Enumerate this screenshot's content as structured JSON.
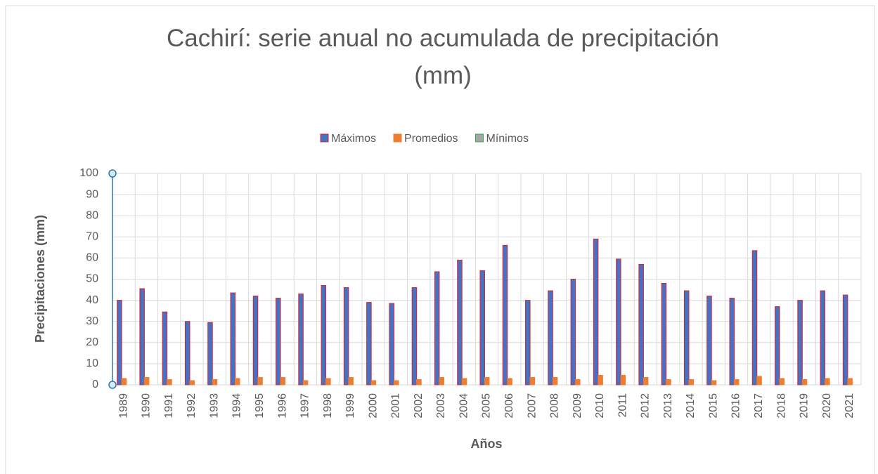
{
  "chart_data": {
    "type": "bar",
    "title": "Cachirí: serie anual no acumulada de precipitación (mm)",
    "x_label": "Años",
    "y_label": "Precipitaciones (mm)",
    "categories": [
      "1989",
      "1990",
      "1991",
      "1992",
      "1993",
      "1994",
      "1995",
      "1996",
      "1997",
      "1998",
      "1999",
      "2000",
      "2001",
      "2002",
      "2003",
      "2004",
      "2005",
      "2006",
      "2007",
      "2008",
      "2009",
      "2010",
      "2011",
      "2012",
      "2013",
      "2014",
      "2015",
      "2016",
      "2017",
      "2018",
      "2019",
      "2020",
      "2021"
    ],
    "series": [
      {
        "name": "Máximos",
        "color": "#4472c4",
        "stroke": "#e0202a",
        "values": [
          40,
          45.5,
          34.5,
          30,
          29.5,
          43.5,
          42,
          41,
          43,
          47,
          46,
          39,
          38.5,
          46,
          53.5,
          59,
          54,
          66,
          40,
          44.5,
          50,
          69,
          59.5,
          57,
          48,
          44.5,
          42,
          41,
          63.5,
          37,
          40,
          44.5,
          42.5
        ]
      },
      {
        "name": "Promedios",
        "color": "#ed7d31",
        "stroke": "#ed7d31",
        "values": [
          3,
          3.5,
          2.5,
          2,
          2.5,
          3,
          3.5,
          3.5,
          2,
          3,
          3.5,
          2,
          2,
          2.5,
          3.5,
          3,
          3.5,
          3,
          3.5,
          3.5,
          2.5,
          4.5,
          4.5,
          3.5,
          2.5,
          2.5,
          2,
          2.5,
          4,
          3,
          2.5,
          3,
          3
        ]
      },
      {
        "name": "Mínimos",
        "color": "#a5a5a5",
        "stroke": "#3aa655",
        "values": [
          0,
          0,
          0,
          0,
          0,
          0,
          0,
          0,
          0,
          0,
          0,
          0,
          0,
          0,
          0,
          0,
          0,
          0,
          0,
          0,
          0,
          0,
          0,
          0,
          0,
          0,
          0,
          0,
          0,
          0,
          0,
          0,
          0
        ]
      }
    ],
    "ylim": [
      0,
      100
    ],
    "yticks": [
      0,
      10,
      20,
      30,
      40,
      50,
      60,
      70,
      80,
      90,
      100
    ],
    "grid": true,
    "legend": "top"
  }
}
